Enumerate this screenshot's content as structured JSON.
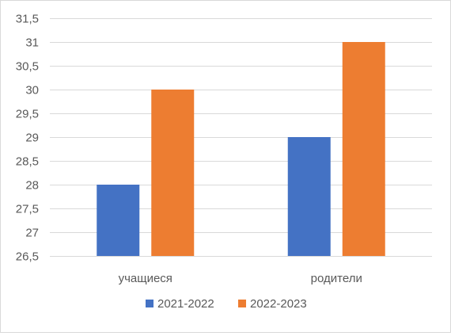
{
  "chart_data": {
    "type": "bar",
    "categories": [
      "учащиеся",
      "родители"
    ],
    "series": [
      {
        "name": "2021-2022",
        "color": "#4472c4",
        "values": [
          28,
          29
        ]
      },
      {
        "name": "2022-2023",
        "color": "#ed7d31",
        "values": [
          30,
          31
        ]
      }
    ],
    "ylim": [
      26.5,
      31.5
    ],
    "yticks": [
      "26,5",
      "27",
      "27,5",
      "28",
      "28,5",
      "29",
      "29,5",
      "30",
      "30,5",
      "31",
      "31,5"
    ],
    "ytick_values": [
      26.5,
      27,
      27.5,
      28,
      28.5,
      29,
      29.5,
      30,
      30.5,
      31,
      31.5
    ],
    "grid": true,
    "legend_position": "bottom"
  }
}
